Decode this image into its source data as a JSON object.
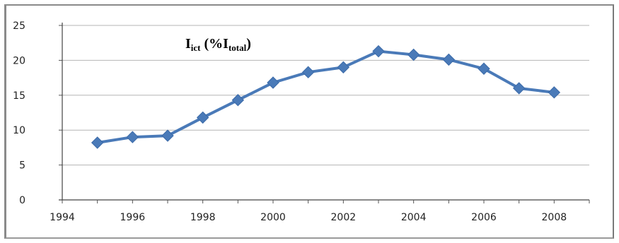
{
  "chart_data": {
    "type": "line",
    "title": {
      "main_1": "I",
      "sub_1": "ict",
      "main_2": " (%I",
      "sub_2": "total",
      "main_3": ")"
    },
    "xlabel": "",
    "ylabel": "",
    "xlim": [
      1994,
      2009
    ],
    "ylim": [
      0,
      25
    ],
    "x_ticks": [
      "1994",
      "1996",
      "1998",
      "2000",
      "2002",
      "2004",
      "2006",
      "2008"
    ],
    "y_ticks": [
      "0",
      "5",
      "10",
      "15",
      "20",
      "25"
    ],
    "grid": true,
    "series": [
      {
        "color": "#4a7ab8",
        "x": [
          1995,
          1996,
          1997,
          1998,
          1999,
          2000,
          2001,
          2002,
          2003,
          2004,
          2005,
          2006,
          2007,
          2008
        ],
        "values": [
          8.2,
          9.0,
          9.2,
          11.8,
          14.3,
          16.8,
          18.3,
          19.0,
          21.3,
          20.8,
          20.1,
          18.8,
          16.0,
          15.4
        ]
      }
    ]
  }
}
